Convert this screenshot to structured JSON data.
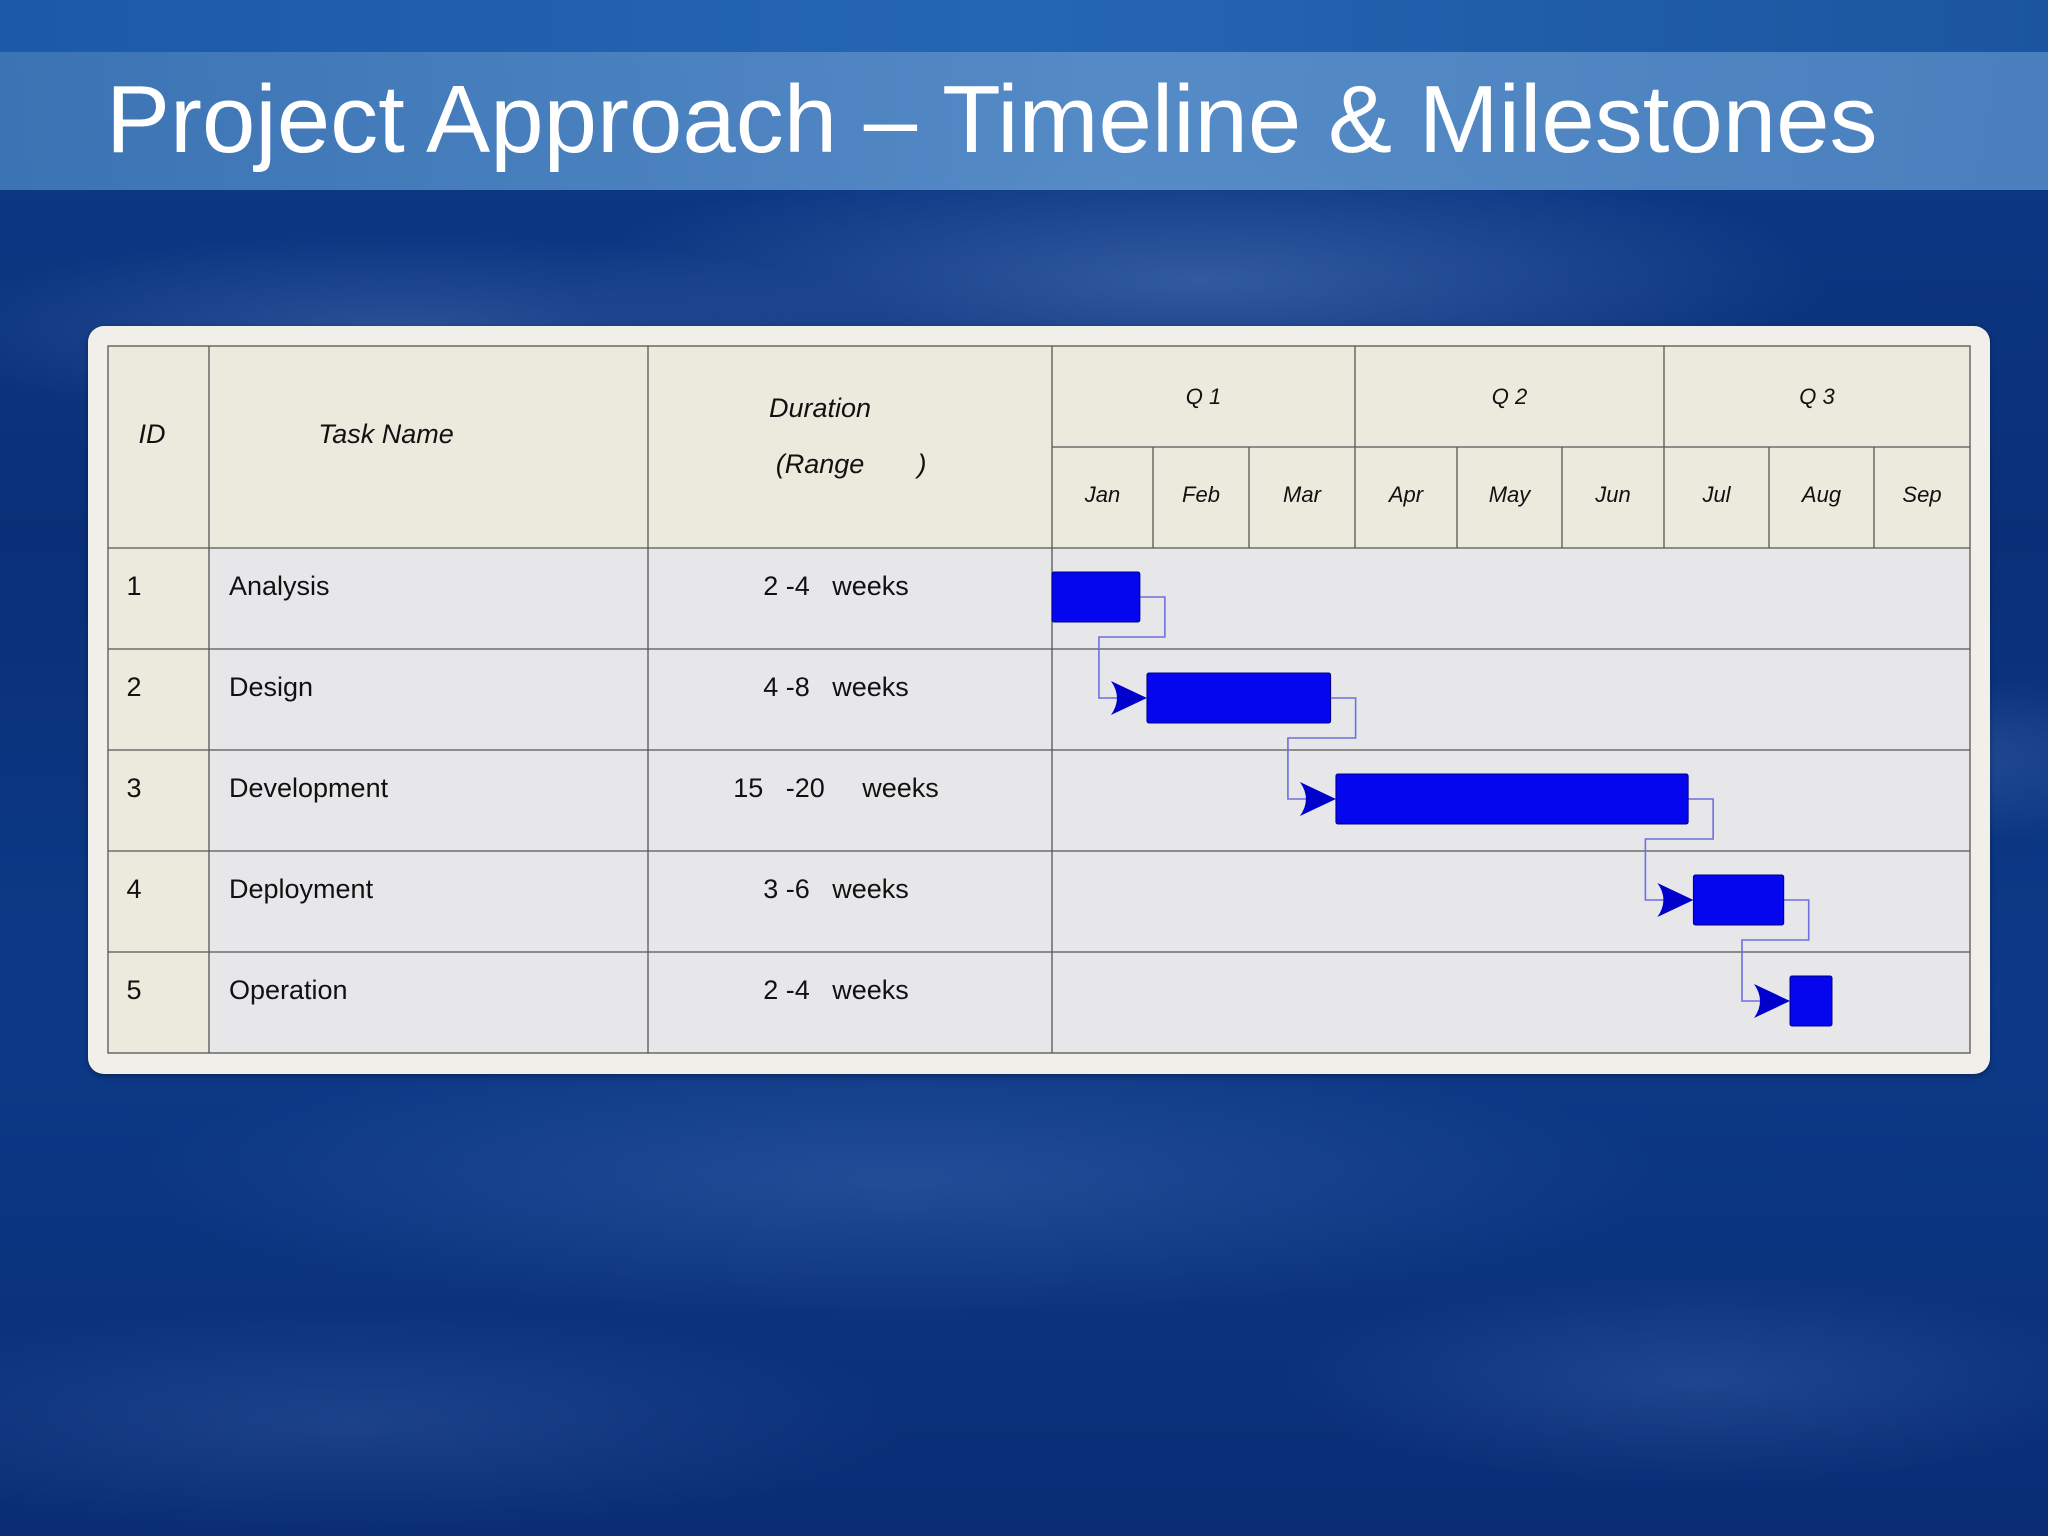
{
  "slide": {
    "title": "Project Approach – Timeline & Milestones"
  },
  "headers": {
    "id": "ID",
    "task_name": "Task Name",
    "duration_line1": "Duration",
    "duration_line2_open": "(Range",
    "duration_line2_close": ")"
  },
  "colors": {
    "bar": "#0505ee",
    "link": "#6f6fe0",
    "header_fill": "#ebeadc",
    "body_fill": "#e7e7ea"
  },
  "chart_data": {
    "type": "gantt",
    "quarters": [
      "Q 1",
      "Q 2",
      "Q 3"
    ],
    "months": [
      "Jan",
      "Feb",
      "Mar",
      "Apr",
      "May",
      "Jun",
      "Jul",
      "Aug",
      "Sep"
    ],
    "months_per_quarter": 3,
    "tasks": [
      {
        "id": "1",
        "name": "Analysis",
        "duration": "2 -4   weeks",
        "start_month": 0.0,
        "end_month": 0.87
      },
      {
        "id": "2",
        "name": "Design",
        "duration": "4 -8   weeks",
        "start_month": 0.94,
        "end_month": 2.77
      },
      {
        "id": "3",
        "name": "Development",
        "duration": "15   -20     weeks",
        "start_month": 2.82,
        "end_month": 6.23
      },
      {
        "id": "4",
        "name": "Deployment",
        "duration": "3 -6   weeks",
        "start_month": 6.28,
        "end_month": 7.14
      },
      {
        "id": "5",
        "name": "Operation",
        "duration": "2 -4   weeks",
        "start_month": 7.2,
        "end_month": 7.6
      }
    ],
    "dependencies": [
      [
        0,
        1
      ],
      [
        1,
        2
      ],
      [
        2,
        3
      ],
      [
        3,
        4
      ]
    ]
  }
}
